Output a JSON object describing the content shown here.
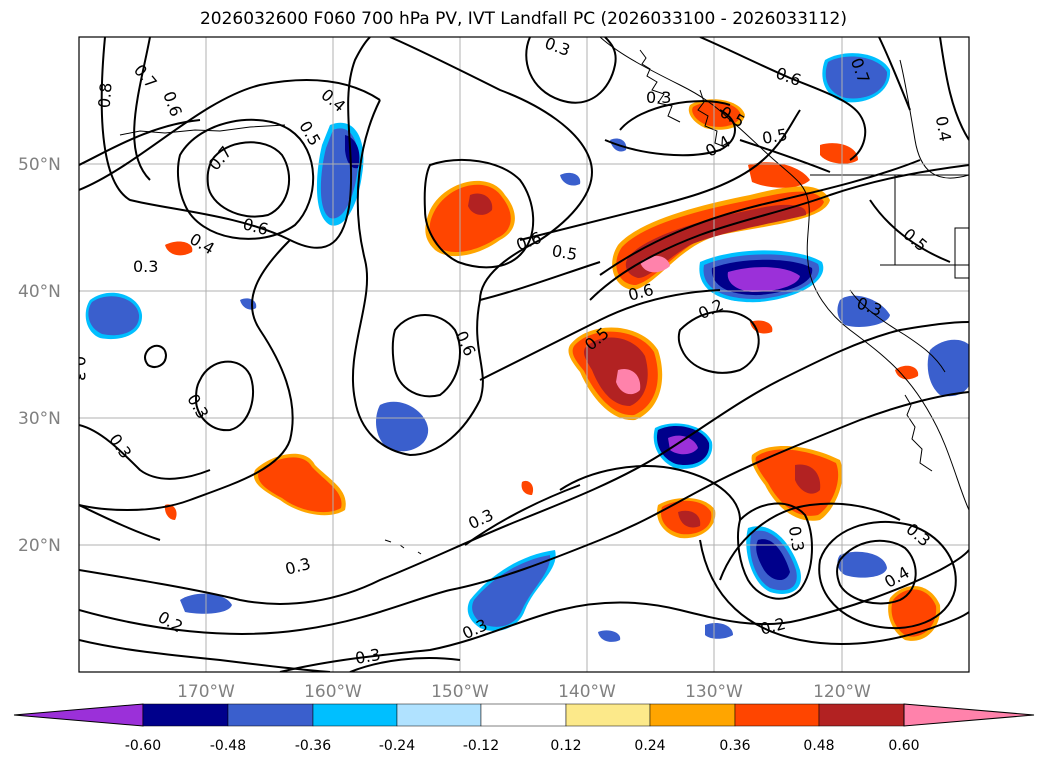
{
  "title": "2026032600 F060 700 hPa PV, IVT Landfall PC (2026033100 - 2026033112)",
  "lat_ticks": [
    "20°N",
    "30°N",
    "40°N",
    "50°N"
  ],
  "lon_ticks": [
    "170°W",
    "160°W",
    "150°W",
    "140°W",
    "130°W",
    "120°W"
  ],
  "colorbar": {
    "colors": [
      "#9b30d9",
      "#00008b",
      "#3a5fcd",
      "#00bfff",
      "#b0e2ff",
      "#ffffff",
      "#fce98a",
      "#ffa500",
      "#ff4500",
      "#b22222",
      "#ff82ab"
    ],
    "tick_labels": [
      "-0.60",
      "-0.48",
      "-0.36",
      "-0.24",
      "-0.12",
      "0.12",
      "0.24",
      "0.36",
      "0.48",
      "0.60"
    ]
  },
  "contour_labels": [
    "0.8",
    "0.7",
    "0.6",
    "0.4",
    "0.5",
    "0.7",
    "0.6",
    "0.4",
    "0.3",
    "0.6",
    "0.5",
    "0.6",
    "0.5",
    "0.3",
    "0.5",
    "0.6",
    "0.2",
    "0.3",
    "0.3",
    "0.3",
    "0.3",
    "0.2",
    "0.3",
    "0.3",
    "0.3",
    "0.2",
    "0.3",
    "0.4",
    "0.3",
    "0.7",
    "0.6",
    "0.3",
    "0.4",
    "0.4",
    "0.5",
    "0.5",
    "0.3"
  ]
}
